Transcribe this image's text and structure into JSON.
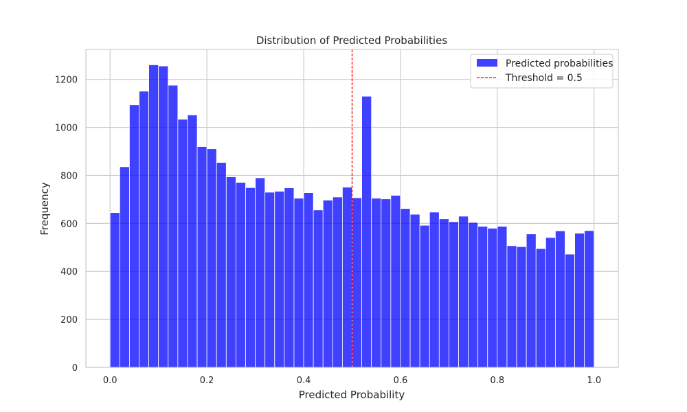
{
  "chart_data": {
    "type": "bar",
    "title": "Distribution of Predicted Probabilities",
    "xlabel": "Predicted Probability",
    "ylabel": "Frequency",
    "xlim": [
      -0.05,
      1.05
    ],
    "ylim": [
      0,
      1325
    ],
    "xticks": [
      0.0,
      0.2,
      0.4,
      0.6,
      0.8,
      1.0
    ],
    "xtick_labels": [
      "0.0",
      "0.2",
      "0.4",
      "0.6",
      "0.8",
      "1.0"
    ],
    "yticks": [
      0,
      200,
      400,
      600,
      800,
      1000,
      1200
    ],
    "ytick_labels": [
      "0",
      "200",
      "400",
      "600",
      "800",
      "1000",
      "1200"
    ],
    "grid": true,
    "legend_position": "top-right",
    "bin_edges_range": [
      0.0,
      1.0
    ],
    "bin_count": 50,
    "series": [
      {
        "name": "Predicted probabilities",
        "color": "#0000ff",
        "values": [
          645,
          836,
          1094,
          1151,
          1261,
          1256,
          1176,
          1034,
          1052,
          920,
          911,
          854,
          794,
          771,
          749,
          790,
          730,
          734,
          748,
          705,
          728,
          656,
          697,
          710,
          751,
          707,
          1130,
          705,
          702,
          717,
          662,
          638,
          592,
          647,
          619,
          607,
          630,
          604,
          588,
          580,
          588,
          507,
          503,
          556,
          495,
          541,
          569,
          472,
          559,
          570
        ]
      }
    ],
    "threshold": {
      "name": "Threshold = 0.5",
      "value": 0.5,
      "color": "#ff0000",
      "style": "dashed"
    }
  }
}
